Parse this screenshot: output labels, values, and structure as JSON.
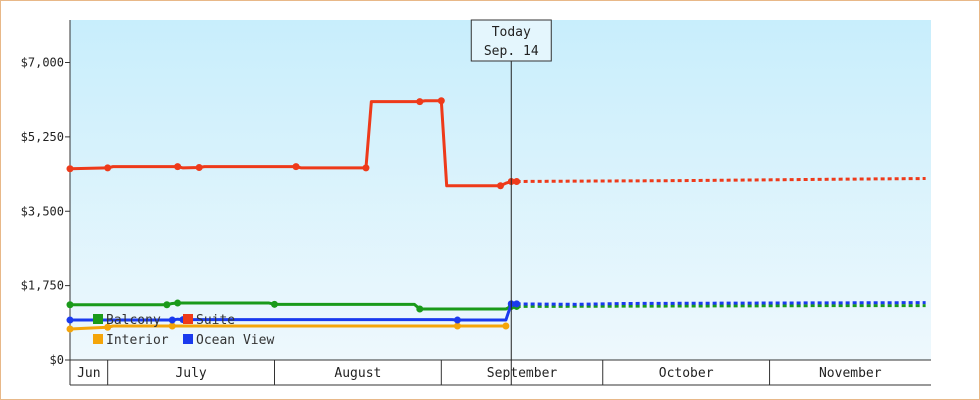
{
  "chart_data": {
    "type": "line",
    "title": "",
    "xlabel": "",
    "ylabel": "",
    "ylim": [
      0,
      8000
    ],
    "yticks": [
      {
        "value": 0,
        "label": "$0"
      },
      {
        "value": 1750,
        "label": "$1,750"
      },
      {
        "value": 3500,
        "label": "$3,500"
      },
      {
        "value": 5250,
        "label": "$5,250"
      },
      {
        "value": 7000,
        "label": "$7,000"
      }
    ],
    "xlim": [
      "2024-06-24",
      "2024-11-30"
    ],
    "months": [
      {
        "label": "Jun",
        "start": "2024-06-24",
        "end": "2024-07-01"
      },
      {
        "label": "July",
        "start": "2024-07-01",
        "end": "2024-08-01"
      },
      {
        "label": "August",
        "start": "2024-08-01",
        "end": "2024-09-01"
      },
      {
        "label": "September",
        "start": "2024-09-01",
        "end": "2024-10-01"
      },
      {
        "label": "October",
        "start": "2024-10-01",
        "end": "2024-11-01"
      },
      {
        "label": "November",
        "start": "2024-11-01",
        "end": "2024-12-01"
      }
    ],
    "today": {
      "line1": "Today",
      "line2": "Sep. 14",
      "date": "2024-09-14"
    },
    "legend_position": "bottom-left",
    "grid": false,
    "series": [
      {
        "name": "Balcony",
        "color": "#1a9a1a",
        "values": [
          [
            "2024-06-24",
            1300
          ],
          [
            "2024-07-12",
            1300
          ],
          [
            "2024-07-13",
            1330
          ],
          [
            "2024-07-14",
            1340
          ],
          [
            "2024-07-31",
            1340
          ],
          [
            "2024-08-01",
            1310
          ],
          [
            "2024-08-27",
            1310
          ],
          [
            "2024-08-28",
            1200
          ],
          [
            "2024-09-13",
            1200
          ],
          [
            "2024-09-14",
            1260
          ],
          [
            "2024-09-15",
            1260
          ]
        ],
        "forecast": [
          [
            "2024-09-15",
            1260
          ],
          [
            "2024-10-15",
            1270
          ],
          [
            "2024-11-15",
            1280
          ],
          [
            "2024-11-30",
            1280
          ]
        ]
      },
      {
        "name": "Suite",
        "color": "#ee3a1a",
        "values": [
          [
            "2024-06-24",
            4500
          ],
          [
            "2024-07-01",
            4520
          ],
          [
            "2024-07-02",
            4550
          ],
          [
            "2024-07-14",
            4550
          ],
          [
            "2024-07-15",
            4520
          ],
          [
            "2024-07-18",
            4530
          ],
          [
            "2024-07-19",
            4550
          ],
          [
            "2024-08-05",
            4550
          ],
          [
            "2024-08-06",
            4520
          ],
          [
            "2024-08-18",
            4520
          ],
          [
            "2024-08-19",
            6080
          ],
          [
            "2024-08-28",
            6080
          ],
          [
            "2024-08-29",
            6100
          ],
          [
            "2024-09-01",
            6100
          ],
          [
            "2024-09-02",
            4100
          ],
          [
            "2024-09-12",
            4100
          ],
          [
            "2024-09-13",
            4160
          ],
          [
            "2024-09-14",
            4200
          ],
          [
            "2024-09-15",
            4200
          ]
        ],
        "forecast": [
          [
            "2024-09-15",
            4200
          ],
          [
            "2024-09-28",
            4210
          ],
          [
            "2024-10-15",
            4220
          ],
          [
            "2024-11-10",
            4250
          ],
          [
            "2024-11-30",
            4270
          ]
        ]
      },
      {
        "name": "Interior",
        "color": "#f4a50a",
        "values": [
          [
            "2024-06-24",
            730
          ],
          [
            "2024-07-01",
            770
          ],
          [
            "2024-07-02",
            800
          ],
          [
            "2024-07-13",
            800
          ],
          [
            "2024-09-03",
            800
          ],
          [
            "2024-09-04",
            800
          ],
          [
            "2024-09-13",
            800
          ]
        ],
        "forecast": []
      },
      {
        "name": "Ocean View",
        "color": "#1a3aee",
        "values": [
          [
            "2024-06-24",
            940
          ],
          [
            "2024-07-13",
            940
          ],
          [
            "2024-07-14",
            960
          ],
          [
            "2024-07-15",
            950
          ],
          [
            "2024-09-03",
            950
          ],
          [
            "2024-09-04",
            940
          ],
          [
            "2024-09-13",
            940
          ],
          [
            "2024-09-14",
            1320
          ],
          [
            "2024-09-15",
            1320
          ]
        ],
        "forecast": [
          [
            "2024-09-15",
            1320
          ],
          [
            "2024-09-26",
            1310
          ],
          [
            "2024-10-05",
            1330
          ],
          [
            "2024-10-30",
            1340
          ],
          [
            "2024-11-30",
            1350
          ]
        ]
      }
    ]
  }
}
